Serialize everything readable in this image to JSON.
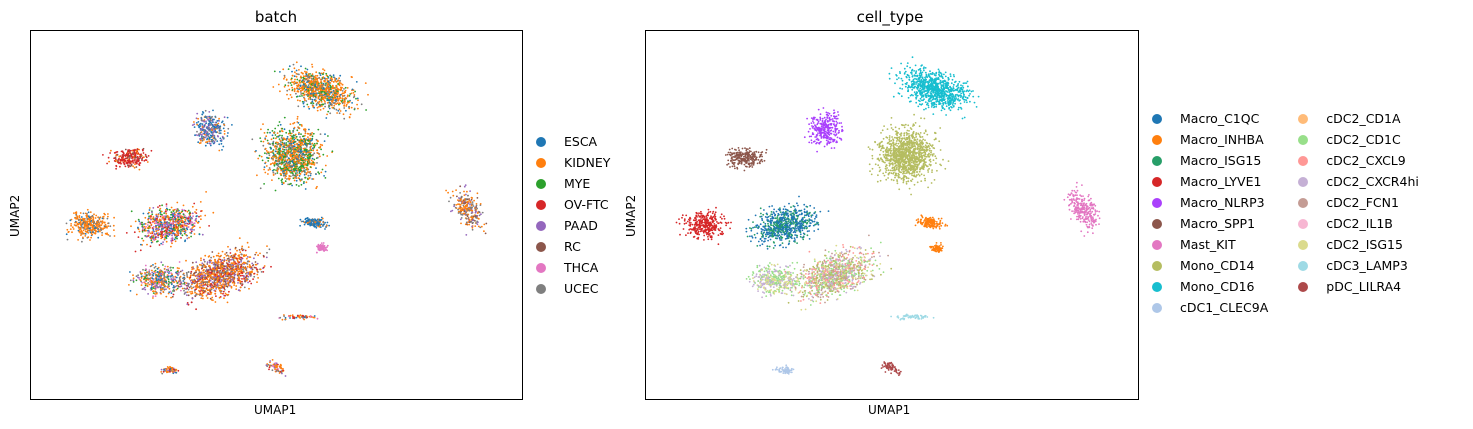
{
  "chart_data": [
    {
      "type": "scatter",
      "title": "batch",
      "xlabel": "UMAP1",
      "ylabel": "UMAP2",
      "xticks": [],
      "yticks": [],
      "grid": false,
      "legend_placement": "right",
      "legend_title": "",
      "series": [
        {
          "name": "ESCA",
          "color": "#1f77b4"
        },
        {
          "name": "KIDNEY",
          "color": "#ff7f0e"
        },
        {
          "name": "MYE",
          "color": "#2ca02c"
        },
        {
          "name": "OV-FTC",
          "color": "#d62728"
        },
        {
          "name": "PAAD",
          "color": "#9467bd"
        },
        {
          "name": "RC",
          "color": "#8c564b"
        },
        {
          "name": "THCA",
          "color": "#e377c2"
        },
        {
          "name": "UCEC",
          "color": "#7f7f7f"
        }
      ]
    },
    {
      "type": "scatter",
      "title": "cell_type",
      "xlabel": "UMAP1",
      "ylabel": "UMAP2",
      "xticks": [],
      "yticks": [],
      "grid": false,
      "legend_placement": "right",
      "legend_title": "",
      "series": [
        {
          "name": "Macro_C1QC",
          "color": "#1f77b4"
        },
        {
          "name": "Macro_INHBA",
          "color": "#ff7f0e"
        },
        {
          "name": "Macro_ISG15",
          "color": "#279e68"
        },
        {
          "name": "Macro_LYVE1",
          "color": "#d62728"
        },
        {
          "name": "Macro_NLRP3",
          "color": "#aa40fc"
        },
        {
          "name": "Macro_SPP1",
          "color": "#8c564b"
        },
        {
          "name": "Mast_KIT",
          "color": "#e377c2"
        },
        {
          "name": "Mono_CD14",
          "color": "#b5bd61"
        },
        {
          "name": "Mono_CD16",
          "color": "#17becf"
        },
        {
          "name": "cDC1_CLEC9A",
          "color": "#aec7e8"
        },
        {
          "name": "cDC2_CD1A",
          "color": "#ffbb78"
        },
        {
          "name": "cDC2_CD1C",
          "color": "#98df8a"
        },
        {
          "name": "cDC2_CXCL9",
          "color": "#ff9896"
        },
        {
          "name": "cDC2_CXCR4hi",
          "color": "#c5b0d5"
        },
        {
          "name": "cDC2_FCN1",
          "color": "#c49c94"
        },
        {
          "name": "cDC2_IL1B",
          "color": "#f7b6d2"
        },
        {
          "name": "cDC2_ISG15",
          "color": "#dbdb8d"
        },
        {
          "name": "cDC3_LAMP3",
          "color": "#9edae5"
        },
        {
          "name": "pDC_LILRA4",
          "color": "#ad494a"
        }
      ]
    }
  ]
}
